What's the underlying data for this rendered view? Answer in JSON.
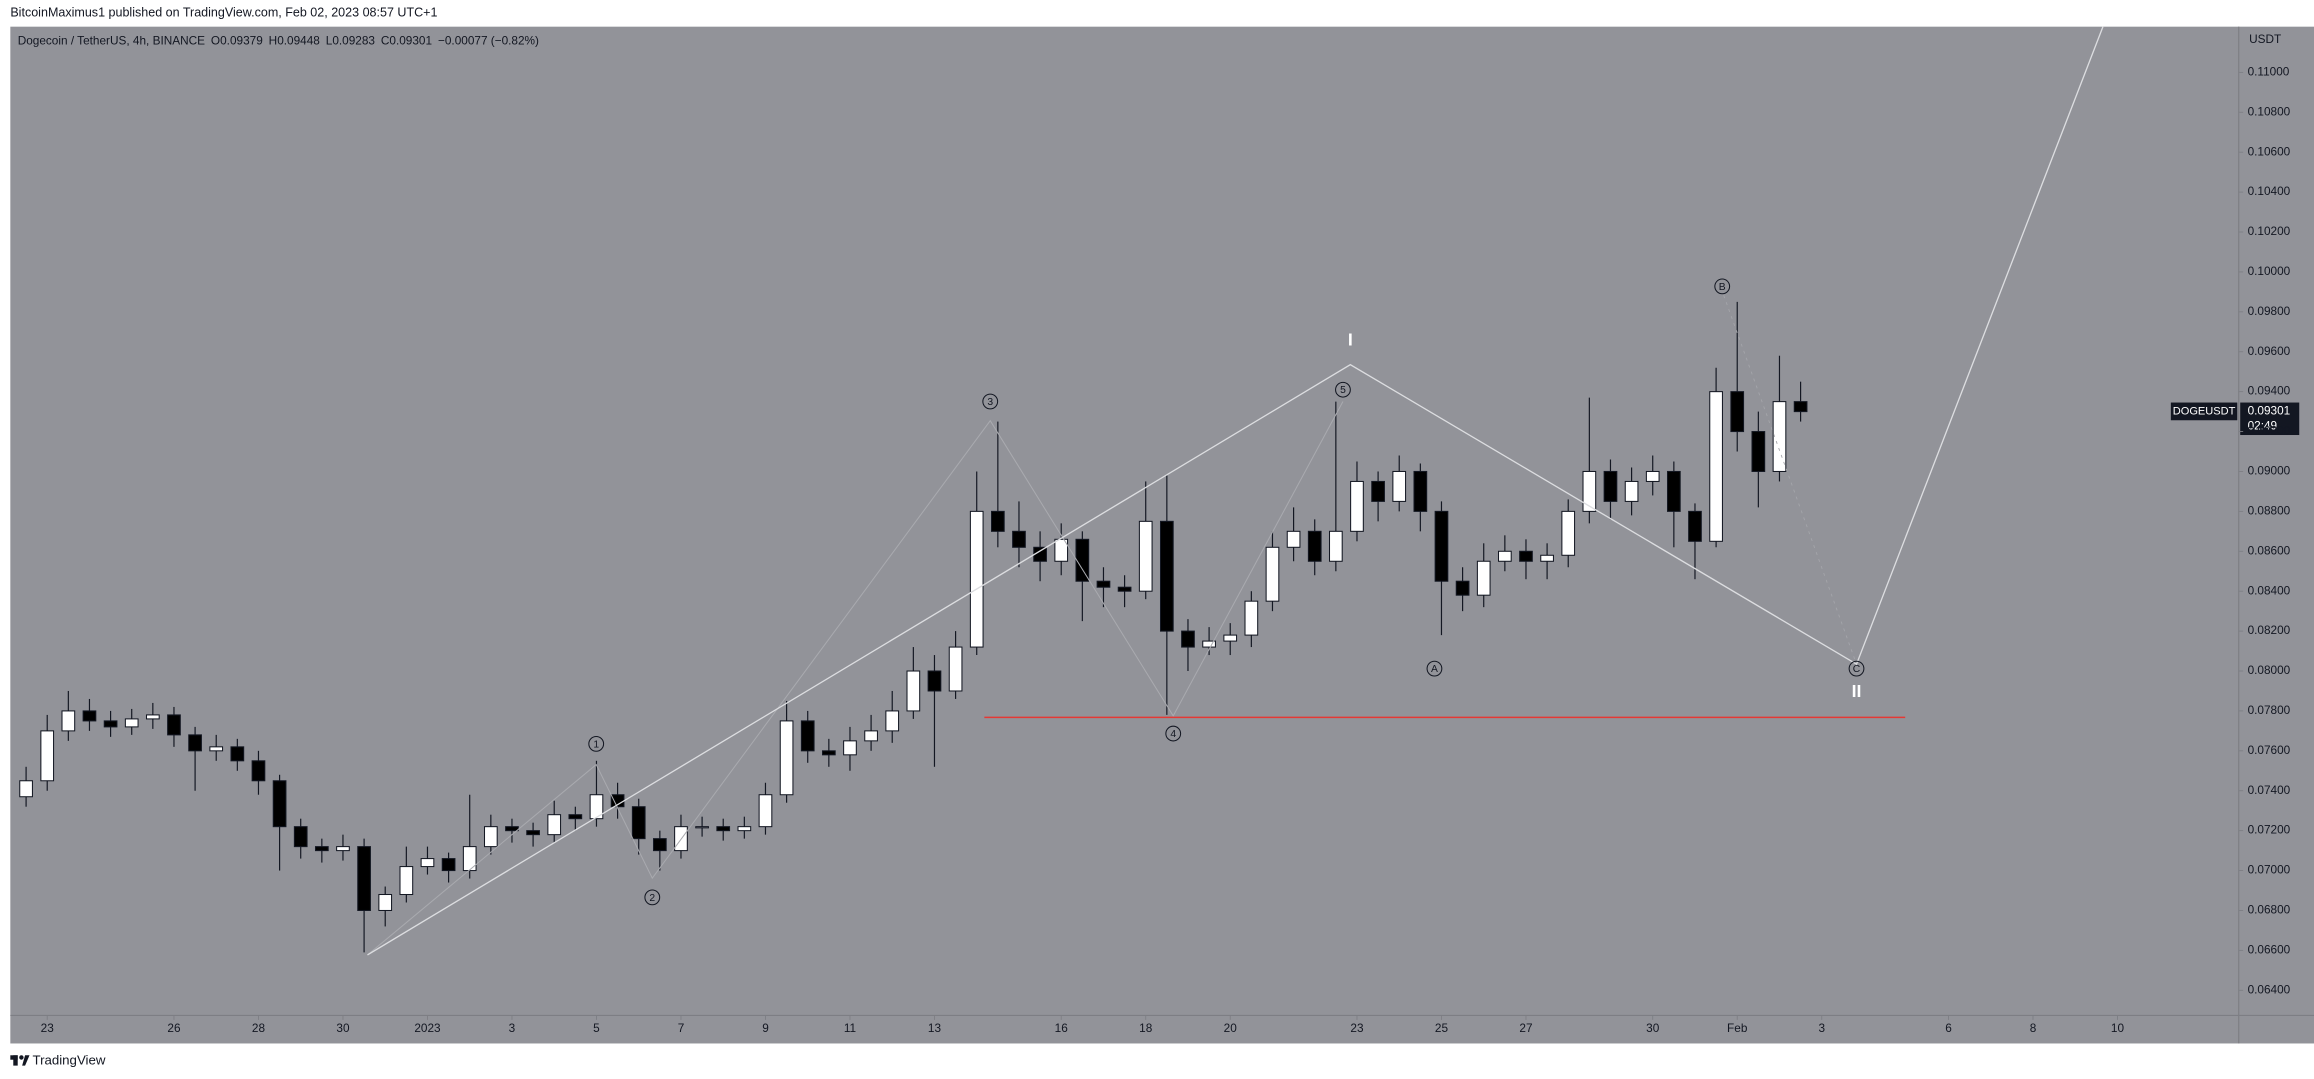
{
  "header": {
    "publisher": "BitcoinMaximus1 published on TradingView.com, Feb 02, 2023 08:57 UTC+1"
  },
  "chart_data": {
    "type": "candlestick",
    "legend_items": [
      "Dogecoin / TetherUS, 4h, BINANCE",
      "O",
      "0.09379",
      "H",
      "0.09448",
      "L",
      "0.09283",
      "C",
      "0.09301",
      "−0.00077 (−0.82%)"
    ],
    "y_axis_unit": "USDT",
    "symbol_tag": "DOGEUSDT",
    "last_price": 0.09301,
    "countdown": "02:49",
    "up_color": "#ffffff",
    "down_color": "#000000",
    "x": [
      -0.5,
      0,
      0.5,
      1,
      1.5,
      2,
      2.5,
      3,
      3.5,
      4,
      4.5,
      5,
      5.5,
      6,
      6.5,
      7,
      7.5,
      8,
      8.5,
      9,
      9.5,
      10,
      10.5,
      11,
      11.5,
      12,
      12.5,
      13,
      13.5,
      14,
      14.5,
      15,
      15.5,
      16,
      16.5,
      17,
      17.5,
      18,
      18.5,
      19,
      19.5,
      20,
      20.5,
      21,
      21.5,
      22,
      22.5,
      23,
      23.5,
      24,
      24.5,
      25,
      25.5,
      26,
      26.5,
      27,
      27.5,
      28,
      28.5,
      29,
      29.5,
      30,
      30.5,
      31,
      31.5,
      32,
      32.5,
      33,
      33.5,
      34,
      34.5,
      35,
      35.5,
      36,
      36.5,
      37,
      37.5,
      38,
      38.5,
      39,
      39.5,
      40,
      40.5,
      41,
      41.5
    ],
    "open": [
      0.0737,
      0.0745,
      0.077,
      0.078,
      0.0775,
      0.0772,
      0.0776,
      0.0778,
      0.0768,
      0.076,
      0.0762,
      0.0755,
      0.0745,
      0.0722,
      0.0712,
      0.071,
      0.0712,
      0.068,
      0.0688,
      0.0702,
      0.0706,
      0.07,
      0.0712,
      0.0722,
      0.072,
      0.0718,
      0.0728,
      0.0726,
      0.0738,
      0.0732,
      0.0716,
      0.071,
      0.0722,
      0.0722,
      0.072,
      0.0722,
      0.0738,
      0.0775,
      0.076,
      0.0758,
      0.0765,
      0.077,
      0.078,
      0.08,
      0.079,
      0.0812,
      0.088,
      0.087,
      0.0862,
      0.0855,
      0.0866,
      0.0845,
      0.0842,
      0.084,
      0.0875,
      0.082,
      0.0812,
      0.0815,
      0.0818,
      0.0835,
      0.0862,
      0.087,
      0.0855,
      0.087,
      0.0895,
      0.0885,
      0.09,
      0.088,
      0.0845,
      0.0838,
      0.0855,
      0.086,
      0.0855,
      0.0858,
      0.088,
      0.09,
      0.0885,
      0.0895,
      0.09,
      0.088,
      0.0865,
      0.094,
      0.092,
      0.09,
      0.0935
    ],
    "high": [
      0.0752,
      0.0778,
      0.079,
      0.0786,
      0.078,
      0.0781,
      0.0784,
      0.0782,
      0.0772,
      0.0768,
      0.0766,
      0.076,
      0.0748,
      0.0726,
      0.0716,
      0.0718,
      0.0716,
      0.0692,
      0.0712,
      0.0712,
      0.0709,
      0.0738,
      0.0728,
      0.0726,
      0.0724,
      0.0735,
      0.0732,
      0.0755,
      0.0744,
      0.0736,
      0.072,
      0.0728,
      0.0727,
      0.0726,
      0.0727,
      0.0744,
      0.0785,
      0.078,
      0.0766,
      0.0772,
      0.0778,
      0.079,
      0.0812,
      0.0808,
      0.082,
      0.09,
      0.0925,
      0.0885,
      0.087,
      0.0874,
      0.087,
      0.0852,
      0.0848,
      0.0895,
      0.0898,
      0.0826,
      0.0822,
      0.0824,
      0.084,
      0.087,
      0.0882,
      0.0876,
      0.0935,
      0.0905,
      0.09,
      0.0908,
      0.0904,
      0.0885,
      0.0852,
      0.0864,
      0.0868,
      0.0866,
      0.0864,
      0.0886,
      0.0937,
      0.0906,
      0.0902,
      0.0908,
      0.0905,
      0.0884,
      0.0952,
      0.0985,
      0.093,
      0.0958,
      0.0945
    ],
    "low": [
      0.0732,
      0.074,
      0.0765,
      0.077,
      0.0767,
      0.0768,
      0.0771,
      0.0762,
      0.074,
      0.0755,
      0.075,
      0.0738,
      0.07,
      0.0706,
      0.0704,
      0.0705,
      0.0659,
      0.0672,
      0.0684,
      0.0698,
      0.0694,
      0.0696,
      0.0708,
      0.0714,
      0.0712,
      0.0714,
      0.072,
      0.0722,
      0.0726,
      0.0708,
      0.07,
      0.0706,
      0.0717,
      0.0715,
      0.0716,
      0.0718,
      0.0734,
      0.0754,
      0.0752,
      0.075,
      0.076,
      0.0764,
      0.0776,
      0.0752,
      0.0786,
      0.0808,
      0.0862,
      0.0852,
      0.0845,
      0.0848,
      0.0825,
      0.0832,
      0.0832,
      0.0836,
      0.0778,
      0.08,
      0.0808,
      0.0808,
      0.0812,
      0.083,
      0.0855,
      0.0848,
      0.085,
      0.0865,
      0.0875,
      0.088,
      0.087,
      0.0818,
      0.083,
      0.0832,
      0.085,
      0.0846,
      0.0846,
      0.0852,
      0.0874,
      0.0876,
      0.0878,
      0.0888,
      0.0862,
      0.0846,
      0.0862,
      0.091,
      0.0882,
      0.0895,
      0.0925
    ],
    "close": [
      0.0745,
      0.077,
      0.078,
      0.0775,
      0.0772,
      0.0776,
      0.0778,
      0.0768,
      0.076,
      0.0762,
      0.0755,
      0.0745,
      0.0722,
      0.0712,
      0.071,
      0.0712,
      0.068,
      0.0688,
      0.0702,
      0.0706,
      0.07,
      0.0712,
      0.0722,
      0.072,
      0.0718,
      0.0728,
      0.0726,
      0.0738,
      0.0732,
      0.0716,
      0.071,
      0.0722,
      0.0722,
      0.072,
      0.0722,
      0.0738,
      0.0775,
      0.076,
      0.0758,
      0.0765,
      0.077,
      0.078,
      0.08,
      0.079,
      0.0812,
      0.088,
      0.087,
      0.0862,
      0.0855,
      0.0866,
      0.0845,
      0.0842,
      0.084,
      0.0875,
      0.082,
      0.0812,
      0.0815,
      0.0818,
      0.0835,
      0.0862,
      0.087,
      0.0855,
      0.087,
      0.0895,
      0.0885,
      0.09,
      0.088,
      0.0845,
      0.0838,
      0.0855,
      0.086,
      0.0855,
      0.0858,
      0.088,
      0.09,
      0.0885,
      0.0895,
      0.09,
      0.088,
      0.0865,
      0.094,
      0.092,
      0.09,
      0.0935,
      0.093
    ],
    "xlim": [
      -0.873,
      51.87
    ],
    "ylim": [
      0.06274,
      0.11229
    ],
    "xticks": [
      {
        "value": 0,
        "label": "23"
      },
      {
        "value": 3,
        "label": "26"
      },
      {
        "value": 5,
        "label": "28"
      },
      {
        "value": 7,
        "label": "30"
      },
      {
        "value": 9,
        "label": "2023"
      },
      {
        "value": 11,
        "label": "3"
      },
      {
        "value": 13,
        "label": "5"
      },
      {
        "value": 15,
        "label": "7"
      },
      {
        "value": 17,
        "label": "9"
      },
      {
        "value": 19,
        "label": "11"
      },
      {
        "value": 21,
        "label": "13"
      },
      {
        "value": 24,
        "label": "16"
      },
      {
        "value": 26,
        "label": "18"
      },
      {
        "value": 28,
        "label": "20"
      },
      {
        "value": 31,
        "label": "23"
      },
      {
        "value": 33,
        "label": "25"
      },
      {
        "value": 35,
        "label": "27"
      },
      {
        "value": 38,
        "label": "30"
      },
      {
        "value": 40,
        "label": "Feb"
      },
      {
        "value": 42,
        "label": "3"
      },
      {
        "value": 45,
        "label": "6"
      },
      {
        "value": 47,
        "label": "8"
      },
      {
        "value": 49,
        "label": "10"
      }
    ],
    "yticks": [
      {
        "value": 0.064,
        "label": "0.06400"
      },
      {
        "value": 0.066,
        "label": "0.06600"
      },
      {
        "value": 0.068,
        "label": "0.06800"
      },
      {
        "value": 0.07,
        "label": "0.07000"
      },
      {
        "value": 0.072,
        "label": "0.07200"
      },
      {
        "value": 0.074,
        "label": "0.07400"
      },
      {
        "value": 0.076,
        "label": "0.07600"
      },
      {
        "value": 0.078,
        "label": "0.07800"
      },
      {
        "value": 0.08,
        "label": "0.08000"
      },
      {
        "value": 0.082,
        "label": "0.08200"
      },
      {
        "value": 0.084,
        "label": "0.08400"
      },
      {
        "value": 0.086,
        "label": "0.08600"
      },
      {
        "value": 0.088,
        "label": "0.08800"
      },
      {
        "value": 0.09,
        "label": "0.09000"
      },
      {
        "value": 0.092,
        "label": "0.09200"
      },
      {
        "value": 0.094,
        "label": "0.09400"
      },
      {
        "value": 0.096,
        "label": "0.09600"
      },
      {
        "value": 0.098,
        "label": "0.09800"
      },
      {
        "value": 0.1,
        "label": "0.10000"
      },
      {
        "value": 0.102,
        "label": "0.10200"
      },
      {
        "value": 0.104,
        "label": "0.10400"
      },
      {
        "value": 0.106,
        "label": "0.10600"
      },
      {
        "value": 0.108,
        "label": "0.10800"
      },
      {
        "value": 0.11,
        "label": "0.11000"
      }
    ],
    "annotations": [
      "1",
      "2",
      "3",
      "4",
      "5",
      "A",
      "B",
      "C",
      "I",
      "II"
    ]
  },
  "footer": {
    "brand": "TradingView"
  }
}
